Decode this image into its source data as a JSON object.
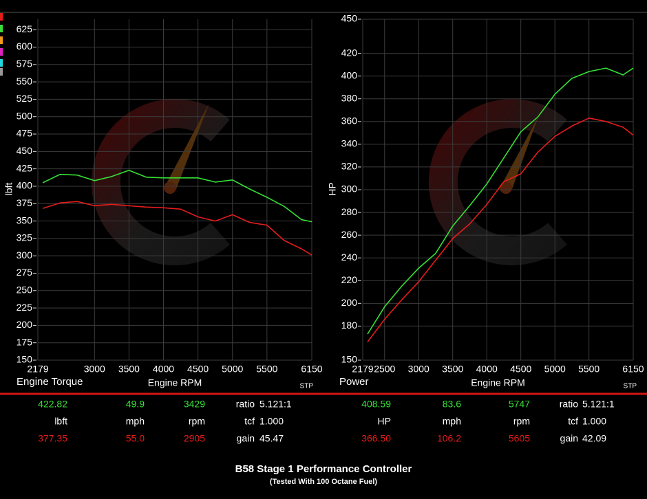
{
  "chart_data": [
    {
      "type": "line",
      "title": "Engine Torque",
      "xlabel": "Engine RPM",
      "ylabel": "lbft",
      "annotation": "STP",
      "x": [
        2250,
        2500,
        2750,
        3000,
        3250,
        3500,
        3750,
        4000,
        4250,
        4500,
        4750,
        5000,
        5250,
        5500,
        5750,
        6000,
        6150
      ],
      "series": [
        {
          "color": "#36e036",
          "values": [
            405,
            417,
            416,
            408,
            414,
            423,
            413,
            412,
            412,
            412,
            406,
            409,
            396,
            384,
            371,
            352,
            349
          ]
        },
        {
          "color": "#e51c1c",
          "values": [
            368,
            376,
            378,
            372,
            374,
            372,
            370,
            369,
            367,
            356,
            350,
            359,
            348,
            344,
            322,
            310,
            301
          ]
        }
      ],
      "xlim": [
        2179,
        6150
      ],
      "xticks": [
        2179,
        3000,
        3500,
        4000,
        4500,
        5000,
        5500,
        6150
      ],
      "ylim": [
        150,
        640
      ],
      "yticks": [
        150,
        175,
        200,
        225,
        250,
        275,
        300,
        325,
        350,
        375,
        400,
        425,
        450,
        475,
        500,
        525,
        550,
        575,
        600,
        625
      ],
      "grid": true
    },
    {
      "type": "line",
      "title": "Power",
      "xlabel": "Engine RPM",
      "ylabel": "HP",
      "annotation": "STP",
      "x": [
        2250,
        2500,
        2750,
        3000,
        3250,
        3500,
        3750,
        4000,
        4250,
        4500,
        4750,
        5000,
        5250,
        5500,
        5750,
        6000,
        6150
      ],
      "series": [
        {
          "color": "#36e036",
          "values": [
            173,
            197,
            215,
            231,
            244,
            268,
            286,
            305,
            328,
            351,
            364,
            384,
            398,
            404,
            407,
            401,
            407
          ]
        },
        {
          "color": "#e51c1c",
          "values": [
            166,
            186,
            203,
            219,
            238,
            257,
            270,
            287,
            307,
            314,
            333,
            347,
            356,
            363,
            360,
            355,
            348
          ]
        }
      ],
      "xlim": [
        2179,
        6150
      ],
      "xticks": [
        2179,
        2500,
        3000,
        3500,
        4000,
        4500,
        5000,
        5500,
        6150
      ],
      "ylim": [
        150,
        450
      ],
      "yticks": [
        150,
        180,
        200,
        220,
        240,
        260,
        280,
        300,
        320,
        340,
        360,
        380,
        400,
        420,
        450
      ],
      "grid": true
    }
  ],
  "stats": [
    {
      "rows": [
        [
          "422.82",
          "49.9",
          "3429",
          "ratio",
          "5.121:1"
        ],
        [
          "lbft",
          "mph",
          "rpm",
          "tcf",
          "1.000"
        ],
        [
          "377.35",
          "55.0",
          "2905",
          "gain",
          "45.47"
        ]
      ]
    },
    {
      "rows": [
        [
          "408.59",
          "83.6",
          "5747",
          "ratio",
          "5.121:1"
        ],
        [
          "HP",
          "mph",
          "rpm",
          "tcf",
          "1.000"
        ],
        [
          "366.50",
          "106.2",
          "5605",
          "gain",
          "42.09"
        ]
      ]
    }
  ],
  "footer": {
    "title": "B58 Stage 1 Performance Controller",
    "subtitle": "(Tested With 100 Octane Fuel)"
  }
}
